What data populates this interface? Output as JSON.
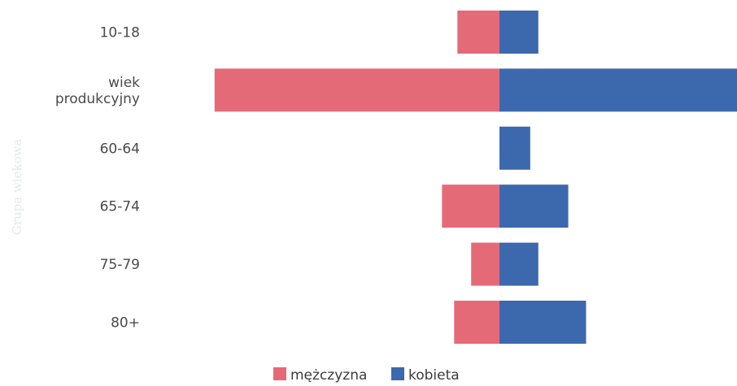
{
  "chart_data": {
    "type": "bar",
    "orientation": "horizontal",
    "stacked": "diverging",
    "categories": [
      "10-18",
      "wiek produkcyjny",
      "60-64",
      "65-74",
      "75-79",
      "80+"
    ],
    "category_lines": [
      [
        "10-18"
      ],
      [
        "wiek",
        "produkcyjny"
      ],
      [
        "60-64"
      ],
      [
        "65-74"
      ],
      [
        "75-79"
      ],
      [
        "80+"
      ]
    ],
    "series": [
      {
        "name": "mężczyzna",
        "values": [
          -52,
          -352,
          0,
          -71,
          -35,
          -56
        ],
        "color": "#e56a78"
      },
      {
        "name": "kobieta",
        "values": [
          48,
          295,
          38,
          85,
          48,
          107
        ],
        "color": "#3c68ad"
      }
    ],
    "ylabel": "Grupa wiekowa",
    "xlim": [
      -352,
      295
    ],
    "grid": false,
    "legend": "bottom-center"
  }
}
